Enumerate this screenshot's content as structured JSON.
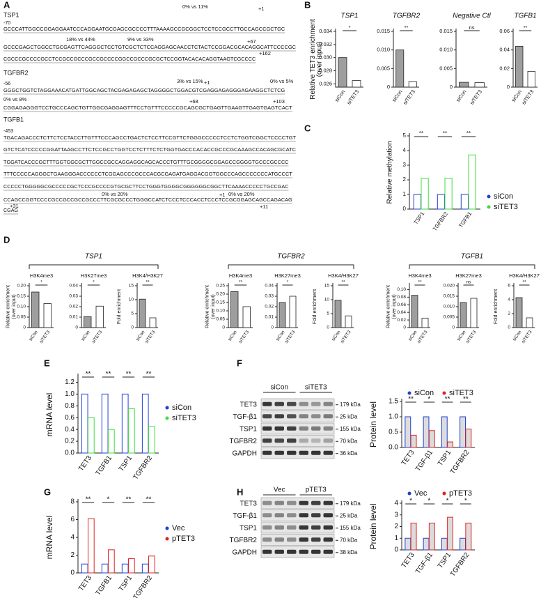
{
  "panel_labels": [
    "A",
    "B",
    "C",
    "D",
    "E",
    "F",
    "G",
    "H"
  ],
  "sequences": [
    {
      "gene": "TSP1",
      "start": "-70",
      "lines": [
        "GCCCATTGGCCGGAGGAATCCCAGGAATGCGAGCGCCCCTTTAAAAGCCGCGGCTCCTCCGCCTTGCCAGCCGCTGC",
        "GCCCGAGCTGGCCTGCGAGTTCAGGGCTCCTGTCGCTCTCCAGGAGCAACCTCTACTCCGGACGCACAGGCATTCCCCGC",
        "CGCCCGCCCCGCCTCCGCCGCCCGCCGCCCCGGCCGCCCGCGCTCCGGTACACACAGGTAAGTCGCCCC"
      ],
      "notes": [
        "0% vs 11%",
        "+1",
        "18% vs 44%",
        "9% vs 33%",
        "+67",
        "+162"
      ]
    },
    {
      "gene": "TGFBR2",
      "start": "-56",
      "lines": [
        "GGGCTGGTCTAGGAAACATGATTGGCAGCTACGAGAGAGCTAGGGGCTGGACGTCGAGGAGAGGGAGAAGGCTCTCG",
        "CGGAGAGGGTCCTGCCCAGCTGTTGGCGAGGAGTTTCCTGTTTCCCCCGCAGCGCTGAGTTGAAGTTGAGTGAGTCACT"
      ],
      "notes": [
        "3% vs 15%",
        "+1",
        "0% vs 5%",
        "0% vs 8%",
        "+68",
        "+103"
      ]
    },
    {
      "gene": "TGFB1",
      "start": "-453",
      "lines": [
        "TGACAGACCCTCTTCTCCTACCTTGTTTCCCAGCCTGACTCTCCTTCCGTTCTGGGCCCCCTCCTCTGGTCGGCTCCCCTGT",
        "GTCTCATCCCCCGGATTAAGCCTTCTCCGCCTGGTCCTCTTTCTCTGGTGACCCACACCGCCCGCAAAGCCACAGCGCATC",
        "TGGATCACCCGCTTTGGTGGCGCTTGGCCGCCAGGAGGCAGCACCCTGTTTGCGGGGCGGAGCCGGGGTGCCCGCCCC",
        "TTTCCCCCAGGGCTGAAGGGACCCCCCTCGGAGCCCGCCCACGCGAGATGAGGACGGTGGCCCAGCCCCCCCATGCCCT",
        "CCCCCTGGGGGCGCCCCCGCTCCCGCCCCGTGCGCTTCCTGGGTGGGGCGGGGGGCGGCTTCAAAACCCCCTGCCGAC",
        "CCAGCCGGTCCCCGCCGCCGCCGCCCTTCGCGCCCTGGGCCATCTCCCTCCCACCTCCCTCCGCGGAGCAGCCAGACAG",
        "CGAG"
      ],
      "notes": [
        "0% vs 20%",
        "+1",
        "0% vs 20%",
        "+11",
        "+31"
      ]
    }
  ],
  "d_groups": [
    "TSP1",
    "TGFBR2",
    "TGFB1"
  ],
  "blots": [
    {
      "groups": [
        "siCon",
        "siTET3"
      ],
      "rows": [
        {
          "name": "TET3",
          "size": "179 kDa"
        },
        {
          "name": "TGF-β1",
          "size": "25 kDa"
        },
        {
          "name": "TSP1",
          "size": "155 kDa"
        },
        {
          "name": "TGFBR2",
          "size": "70 kDa"
        },
        {
          "name": "GAPDH",
          "size": "36 kDa"
        }
      ]
    },
    {
      "groups": [
        "Vec",
        "pTET3"
      ],
      "rows": [
        {
          "name": "TET3",
          "size": "179 kDa"
        },
        {
          "name": "TGF-β1",
          "size": "25 kDa"
        },
        {
          "name": "TSP1",
          "size": "155 kDa"
        },
        {
          "name": "TGFBR2",
          "size": "70 kDa"
        },
        {
          "name": "GAPDH",
          "size": "38 kDa"
        }
      ]
    }
  ],
  "chart_data": [
    {
      "type": "bar",
      "title": "TSP1",
      "ylabel": [
        "Relative TET3 enrichment",
        "(over input)"
      ],
      "categories": [
        "siCon",
        "siTET3"
      ],
      "values": [
        0.03,
        0.0265
      ],
      "colors": [
        "#9e9e9e",
        "#ffffff"
      ],
      "ylim": [
        0.0255,
        0.034
      ],
      "yticks": [
        0.026,
        0.028,
        {
          "value": 0.03,
          "label": "0.030"
        },
        0.032,
        0.034
      ],
      "annotation": "*"
    },
    {
      "type": "bar",
      "title": "TGFBR2",
      "categories": [
        "siCon",
        "siTET3"
      ],
      "values": [
        0.01,
        0.0015
      ],
      "colors": [
        "#9e9e9e",
        "#ffffff"
      ],
      "ylim": [
        0,
        0.015
      ],
      "yticks": [
        0,
        0.005,
        {
          "value": 0.01,
          "label": "0.010"
        },
        0.015
      ],
      "annotation": "**"
    },
    {
      "type": "bar",
      "title": "Negative Ctl",
      "categories": [
        "siCon",
        "siTET3"
      ],
      "values": [
        0.0013,
        0.0012
      ],
      "colors": [
        "#9e9e9e",
        "#ffffff"
      ],
      "ylim": [
        0,
        0.015
      ],
      "yticks": [
        0,
        0.005,
        {
          "value": 0.01,
          "label": "0.010"
        },
        0.015
      ],
      "annotation": "ns"
    },
    {
      "type": "bar",
      "title": "TGFB1",
      "categories": [
        "siCon",
        "siTET3"
      ],
      "values": [
        0.044,
        0.017
      ],
      "colors": [
        "#9e9e9e",
        "#ffffff"
      ],
      "ylim": [
        0,
        0.06
      ],
      "yticks": [
        0,
        0.02,
        0.04,
        0.06
      ],
      "annotation": "**"
    },
    {
      "type": "bar",
      "ylabel": [
        "Relative methylation"
      ],
      "categories": [
        "TSP1",
        "TGFBR2",
        "TGFB1"
      ],
      "bar_fill": "#ffffff",
      "series": [
        {
          "name": "siCon",
          "color": "#1f3fd6",
          "values": [
            1,
            1,
            1
          ]
        },
        {
          "name": "siTET3",
          "color": "#3ddc3d",
          "values": [
            2.1,
            2.1,
            3.7
          ]
        }
      ],
      "ylim": [
        0,
        5
      ],
      "yticks": [
        0,
        1,
        2,
        3,
        4,
        5
      ],
      "annotations": [
        "**",
        "**",
        "**"
      ]
    },
    {
      "type": "bar",
      "title": "H3K4me3",
      "ylabel": [
        "Relative enrichment",
        "(over input)"
      ],
      "categories": [
        "siCon",
        "siTET3"
      ],
      "values": [
        0.17,
        0.115
      ],
      "colors": [
        "#9e9e9e",
        "#ffffff"
      ],
      "ylim": [
        0,
        0.2
      ],
      "yticks": [
        0,
        0.05,
        {
          "value": 0.1,
          "label": "0.10"
        },
        0.15,
        {
          "value": 0.2,
          "label": "0.20"
        }
      ],
      "annotation": "*"
    },
    {
      "type": "bar",
      "title": "H3K27me3",
      "categories": [
        "siCon",
        "siTET3"
      ],
      "values": [
        0.0105,
        0.0205
      ],
      "colors": [
        "#9e9e9e",
        "#ffffff"
      ],
      "ylim": [
        0,
        0.04
      ],
      "yticks": [
        0,
        0.01,
        0.02,
        0.03,
        0.04
      ],
      "annotation": "*"
    },
    {
      "type": "bar",
      "title": "H3K4/H3K27",
      "ylabel": [
        "Fold enrichment"
      ],
      "categories": [
        "siCon",
        "siTET3"
      ],
      "values": [
        10.2,
        3.5
      ],
      "colors": [
        "#9e9e9e",
        "#ffffff"
      ],
      "ylim": [
        0,
        15
      ],
      "yticks": [
        0,
        5,
        10,
        15
      ],
      "annotation": "**"
    },
    {
      "type": "bar",
      "title": "H3K4me3",
      "ylabel": [
        "Relative enrichment",
        "(over input)"
      ],
      "categories": [
        "siCon",
        "siTET3"
      ],
      "values": [
        0.215,
        0.125
      ],
      "colors": [
        "#9e9e9e",
        "#ffffff"
      ],
      "ylim": [
        0,
        0.25
      ],
      "yticks": [
        0,
        0.05,
        {
          "value": 0.1,
          "label": "0.10"
        },
        0.15,
        {
          "value": 0.2,
          "label": "0.20"
        },
        0.25
      ],
      "annotation": "**"
    },
    {
      "type": "bar",
      "title": "H3K27me3",
      "categories": [
        "siCon",
        "siTET3"
      ],
      "values": [
        0.024,
        0.03
      ],
      "colors": [
        "#9e9e9e",
        "#ffffff"
      ],
      "ylim": [
        0,
        0.04
      ],
      "yticks": [
        0,
        0.01,
        0.02,
        0.03,
        0.04
      ],
      "annotation": "*"
    },
    {
      "type": "bar",
      "title": "H3K4/H3K27",
      "ylabel": [
        "Fold enrichment"
      ],
      "categories": [
        "siCon",
        "siTET3"
      ],
      "values": [
        9.8,
        4.2
      ],
      "colors": [
        "#9e9e9e",
        "#ffffff"
      ],
      "ylim": [
        0,
        15
      ],
      "yticks": [
        0,
        5,
        10,
        15
      ],
      "annotation": "**"
    },
    {
      "type": "bar",
      "title": "H3K4me3",
      "ylabel": [
        "Relative enrichment",
        "(over input)"
      ],
      "categories": [
        "siCon",
        "siTET3"
      ],
      "values": [
        0.085,
        0.025
      ],
      "colors": [
        "#9e9e9e",
        "#ffffff"
      ],
      "ylim": [
        0,
        0.11
      ],
      "yticks": [
        0,
        0.02,
        0.04,
        0.06,
        0.08,
        {
          "value": 0.1,
          "label": "0.10"
        }
      ],
      "annotation": "**"
    },
    {
      "type": "bar",
      "title": "H3K27me3",
      "categories": [
        "siCon",
        "siTET3"
      ],
      "values": [
        0.012,
        0.014
      ],
      "colors": [
        "#9e9e9e",
        "#ffffff"
      ],
      "ylim": [
        0,
        0.02
      ],
      "yticks": [
        0,
        0.005,
        {
          "value": 0.01,
          "label": "0.010"
        },
        0.015,
        {
          "value": 0.02,
          "label": "0.020"
        }
      ],
      "annotation": "ns"
    },
    {
      "type": "bar",
      "title": "H3K4/H3K27",
      "ylabel": [
        "Fold enrichment"
      ],
      "categories": [
        "siCon",
        "siTET3"
      ],
      "values": [
        4.3,
        1.4
      ],
      "colors": [
        "#9e9e9e",
        "#ffffff"
      ],
      "ylim": [
        0,
        6
      ],
      "yticks": [
        0,
        2,
        4,
        6
      ],
      "annotation": "**"
    },
    {
      "type": "bar",
      "ylabel": [
        "mRNA level"
      ],
      "categories": [
        "TET3",
        "TGFB1",
        "TSP1",
        "TGFBR2"
      ],
      "bar_fill": "#ffffff",
      "series": [
        {
          "name": "siCon",
          "color": "#1f3fd6",
          "values": [
            1,
            1,
            1,
            1
          ]
        },
        {
          "name": "siTET3",
          "color": "#3ddc3d",
          "values": [
            0.6,
            0.4,
            0.75,
            0.45
          ]
        }
      ],
      "ylim": [
        0,
        1.3
      ],
      "yticks": [
        {
          "value": 0,
          "label": "0.0"
        },
        0.2,
        0.4,
        0.6,
        0.8,
        {
          "value": 1,
          "label": "1.0"
        },
        1.2
      ],
      "annotations": [
        "**",
        "**",
        "**",
        "**"
      ]
    },
    {
      "type": "bar",
      "ylabel": [
        "Protein level"
      ],
      "categories": [
        "TET3",
        "TGF-β1",
        "TSP1",
        "TGFBR2"
      ],
      "bar_fill": "#dcdcdc",
      "series": [
        {
          "name": "siCon",
          "color": "#1f3fd6",
          "values": [
            1,
            1,
            1,
            1
          ]
        },
        {
          "name": "siTET3",
          "color": "#e02020",
          "values": [
            0.4,
            0.55,
            0.18,
            0.6
          ]
        }
      ],
      "ylim": [
        0,
        1.5
      ],
      "yticks": [
        {
          "value": 0,
          "label": "0.0"
        },
        0.5,
        {
          "value": 1,
          "label": "1.0"
        },
        1.5
      ],
      "annotations": [
        "**",
        "*",
        "**",
        "**"
      ]
    },
    {
      "type": "bar",
      "ylabel": [
        "mRNA level"
      ],
      "categories": [
        "TET3",
        "TGFB1",
        "TSP1",
        "TGFBR2"
      ],
      "bar_fill": "#ffffff",
      "series": [
        {
          "name": "Vec",
          "color": "#1f3fd6",
          "values": [
            1,
            1,
            1,
            1
          ]
        },
        {
          "name": "pTET3",
          "color": "#e02020",
          "values": [
            6.1,
            2.6,
            1.6,
            1.9
          ]
        }
      ],
      "ylim": [
        0,
        8
      ],
      "yticks": [
        0,
        2,
        4,
        6,
        8
      ],
      "annotations": [
        "**",
        "*",
        "**",
        "**"
      ]
    },
    {
      "type": "bar",
      "ylabel": [
        "Protein level"
      ],
      "categories": [
        "TET3",
        "TGF-β1",
        "TSP1",
        "TGFBR2"
      ],
      "bar_fill": "#dcdcdc",
      "series": [
        {
          "name": "Vec",
          "color": "#1f3fd6",
          "values": [
            1,
            1,
            1,
            1
          ]
        },
        {
          "name": "pTET3",
          "color": "#e02020",
          "values": [
            2.3,
            2.3,
            2.8,
            2.3
          ]
        }
      ],
      "ylim": [
        0,
        4
      ],
      "yticks": [
        0,
        1,
        2,
        3,
        4
      ],
      "annotations": [
        "*",
        "*",
        "*",
        "*"
      ]
    }
  ]
}
